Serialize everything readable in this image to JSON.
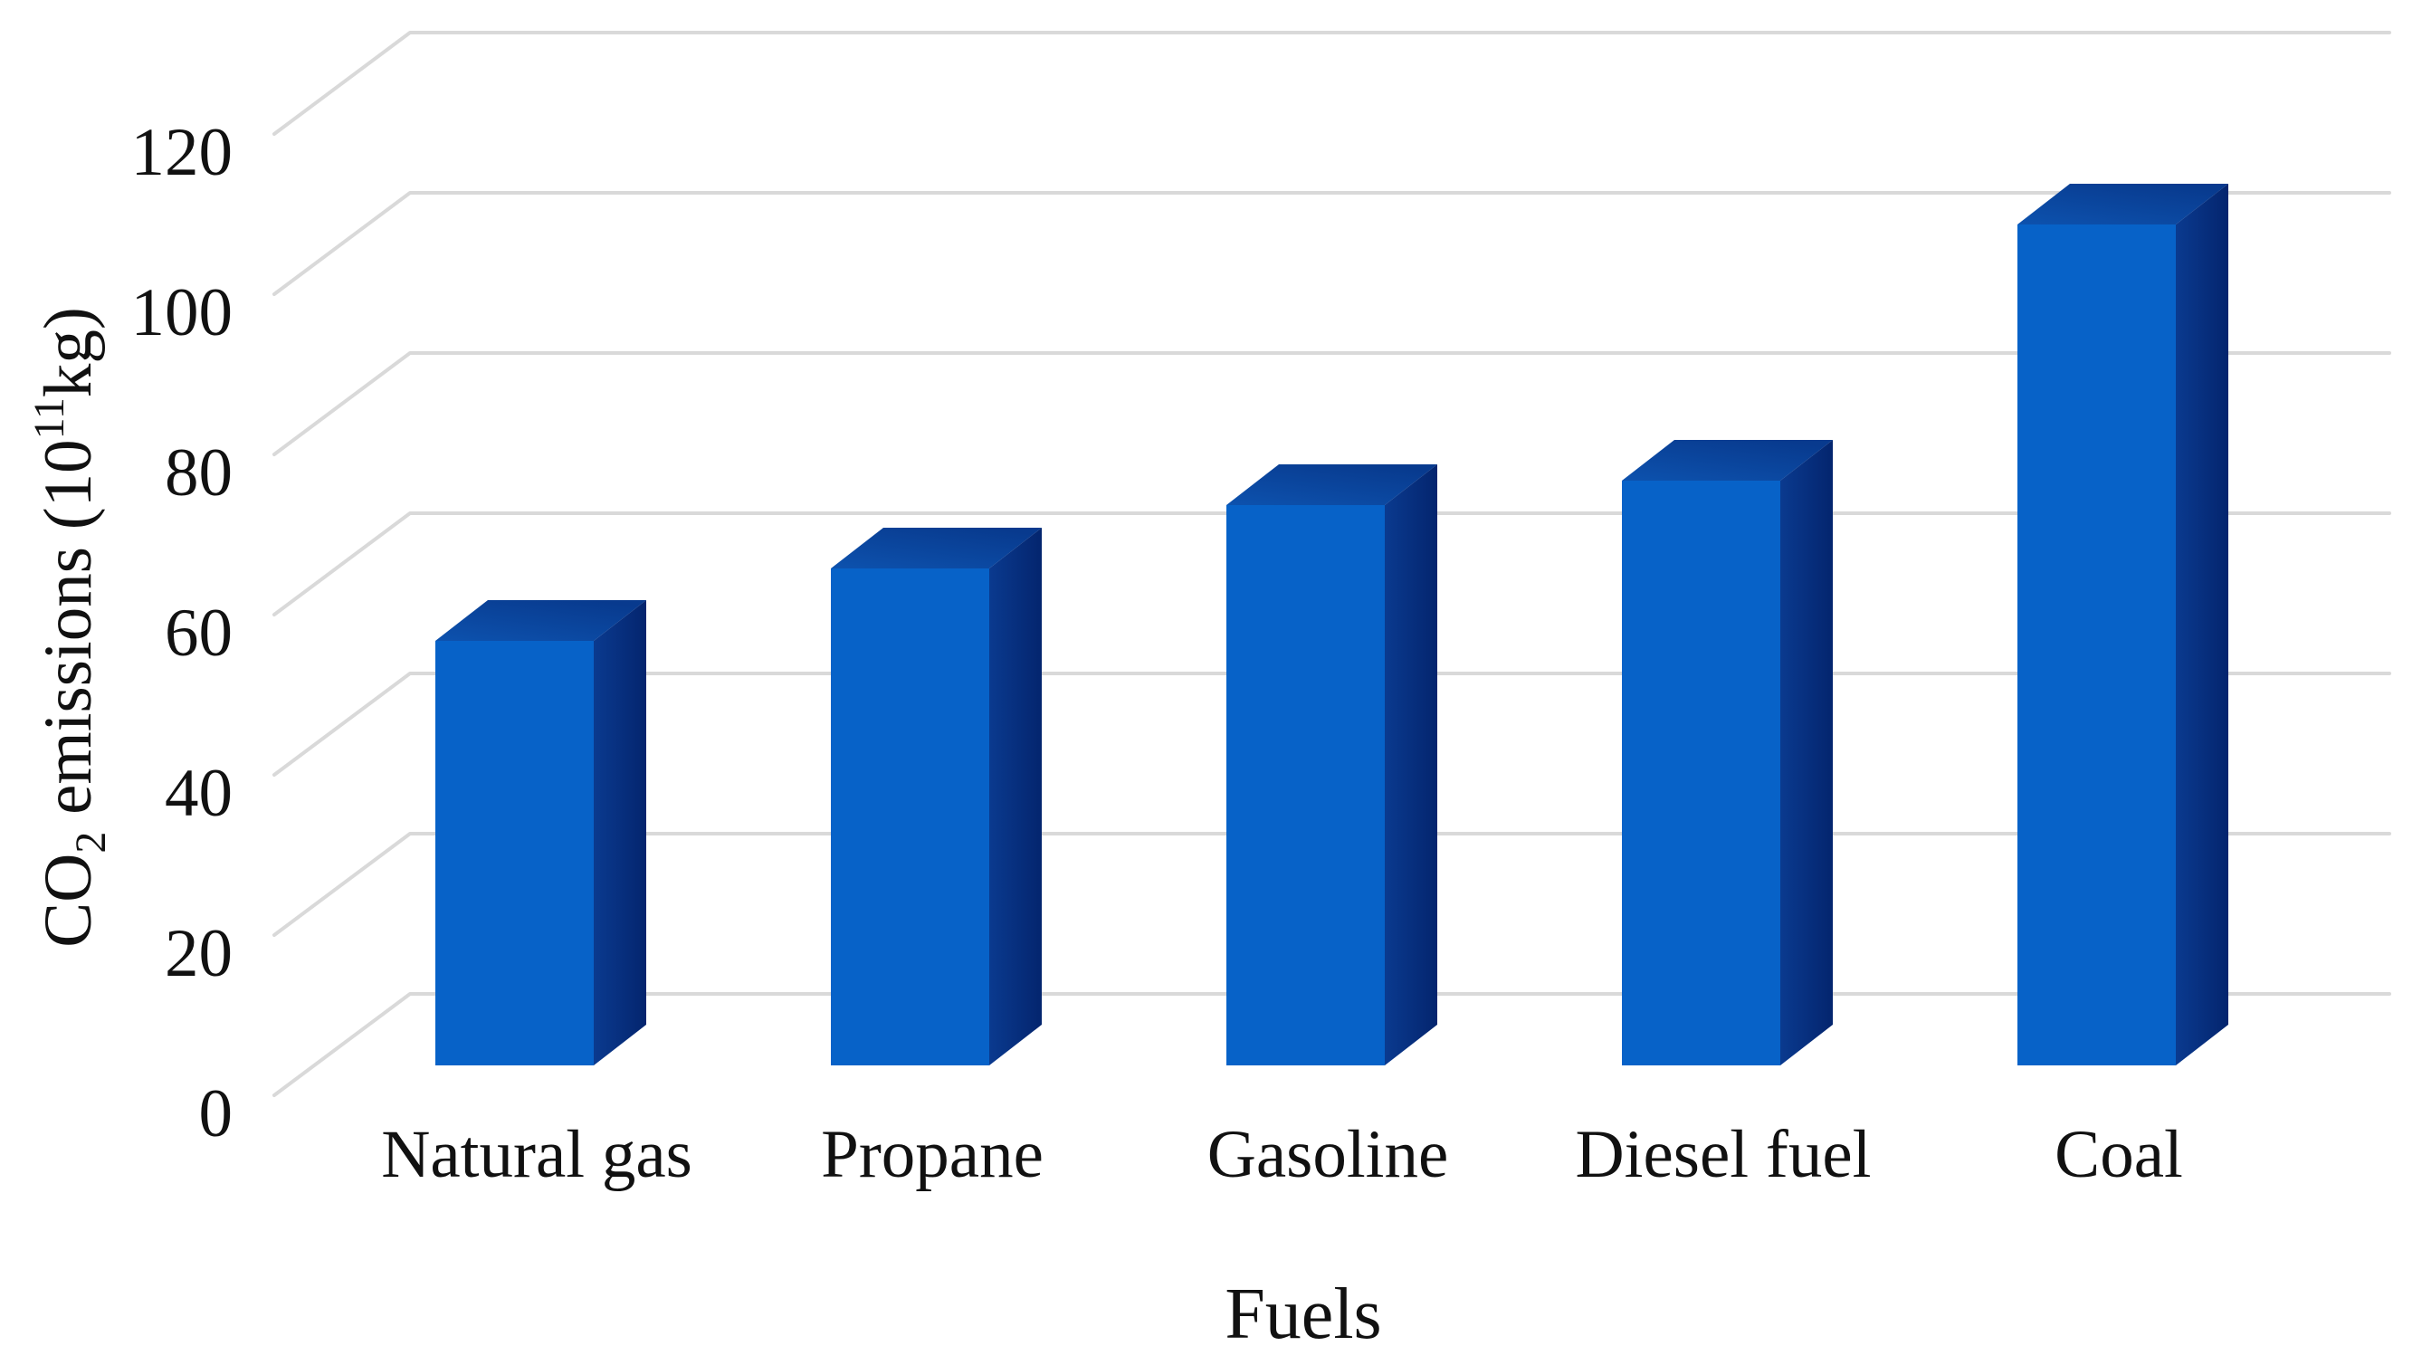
{
  "figure": {
    "background": "#ffffff",
    "text_color": "#111111",
    "gridline_color": "#d9d9d9"
  },
  "chart_data": {
    "type": "bar",
    "projection": "3d-oblique",
    "title": "",
    "xlabel": "Fuels",
    "ylabel": "CO₂ emissions (10¹¹kg)",
    "ylabel_parts": {
      "pre": "CO",
      "sub": "2",
      "mid": " emissions (10",
      "sup": "11",
      "post": "kg)"
    },
    "categories": [
      "Natural gas",
      "Propane",
      "Gasoline",
      "Diesel fuel",
      "Coal"
    ],
    "values": [
      53,
      62,
      70,
      73,
      105
    ],
    "yticks": [
      0,
      20,
      40,
      60,
      80,
      100,
      120
    ],
    "ylim": [
      0,
      120
    ],
    "grid": true,
    "legend": false,
    "bar_colors": {
      "front": "#0762c8",
      "top_front": "#0d52ae",
      "top_back": "#083a8e",
      "side_front": "#0a3a8f",
      "side_back": "#04256e"
    }
  }
}
